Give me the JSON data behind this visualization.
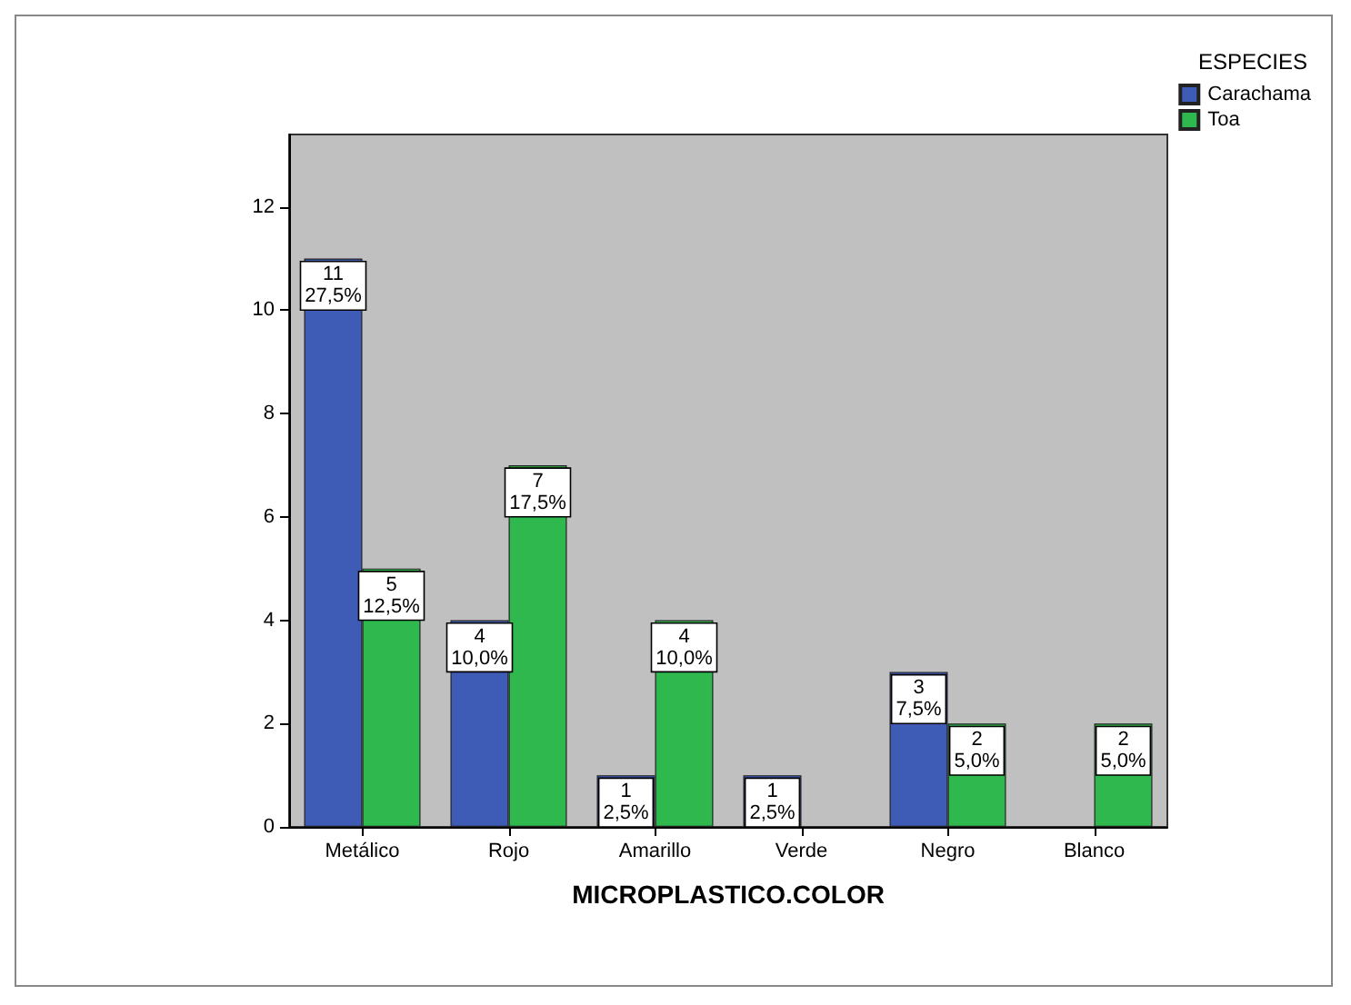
{
  "chart_data": {
    "type": "bar",
    "categories": [
      "Metálico",
      "Rojo",
      "Amarillo",
      "Verde",
      "Negro",
      "Blanco"
    ],
    "xlabel": "MICROPLASTICO.COLOR",
    "legend_title": "ESPECIES",
    "legend": "top right",
    "grid": false,
    "ylim": [
      0,
      13.4
    ],
    "yticks": [
      0,
      2,
      4,
      6,
      8,
      10,
      12
    ],
    "series": [
      {
        "name": "Carachama",
        "color": "#3e5bb5",
        "values": [
          11,
          4,
          1,
          1,
          3,
          null
        ],
        "value_labels": [
          "11\n27,5%",
          "4\n10,0%",
          "1\n2,5%",
          "1\n2,5%",
          "3\n7,5%",
          null
        ]
      },
      {
        "name": "Toa",
        "color": "#2fb84e",
        "values": [
          5,
          7,
          4,
          null,
          2,
          2
        ],
        "value_labels": [
          "5\n12,5%",
          "7\n17,5%",
          "4\n10,0%",
          null,
          "2\n5,0%",
          "2\n5,0%"
        ]
      }
    ]
  }
}
